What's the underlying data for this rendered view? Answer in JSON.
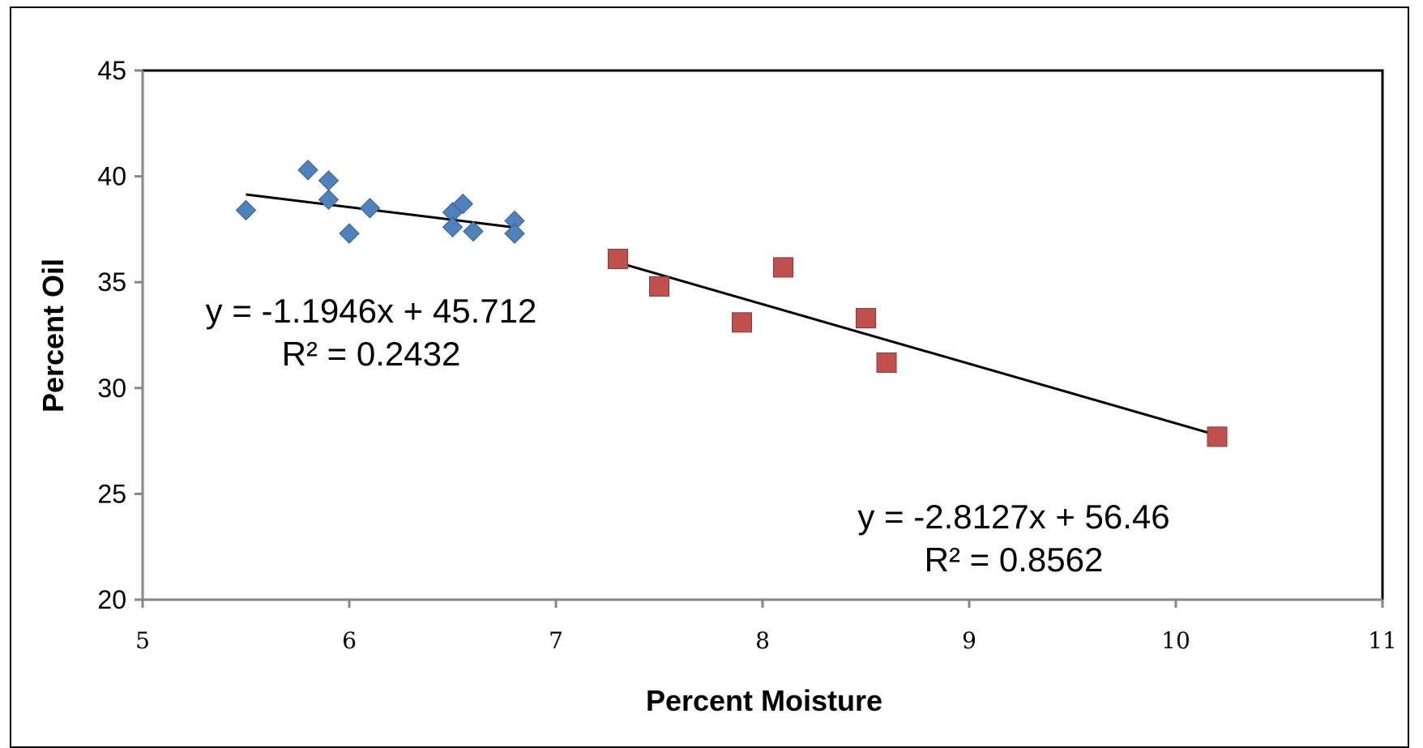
{
  "chart_data": {
    "type": "scatter",
    "title": "",
    "xlabel": "Percent Moisture",
    "ylabel": "Percent Oil",
    "xlim": [
      5,
      11
    ],
    "ylim": [
      20,
      45
    ],
    "x_ticks": [
      "5",
      "6",
      "7",
      "8",
      "9",
      "10",
      "11"
    ],
    "y_ticks": [
      "20",
      "25",
      "30",
      "35",
      "40",
      "45"
    ],
    "grid": false,
    "legend": "none",
    "series": [
      {
        "marker": "diamond",
        "color": "#4F81BD",
        "points": [
          {
            "x": 5.5,
            "y": 38.4
          },
          {
            "x": 5.8,
            "y": 40.3
          },
          {
            "x": 5.9,
            "y": 39.8
          },
          {
            "x": 5.9,
            "y": 38.9
          },
          {
            "x": 6.0,
            "y": 37.3
          },
          {
            "x": 6.1,
            "y": 38.5
          },
          {
            "x": 6.5,
            "y": 38.3
          },
          {
            "x": 6.5,
            "y": 37.6
          },
          {
            "x": 6.55,
            "y": 38.7
          },
          {
            "x": 6.6,
            "y": 37.4
          },
          {
            "x": 6.8,
            "y": 37.9
          },
          {
            "x": 6.8,
            "y": 37.3
          }
        ],
        "trendline": {
          "slope": -1.1946,
          "intercept": 45.712,
          "x_range": [
            5.5,
            6.8
          ],
          "equation": "y = -1.1946x + 45.712",
          "r_squared": "R² = 0.2432"
        }
      },
      {
        "marker": "square",
        "color": "#C0504D",
        "points": [
          {
            "x": 7.3,
            "y": 36.1
          },
          {
            "x": 7.5,
            "y": 34.8
          },
          {
            "x": 7.9,
            "y": 33.1
          },
          {
            "x": 8.1,
            "y": 35.7
          },
          {
            "x": 8.5,
            "y": 33.3
          },
          {
            "x": 8.6,
            "y": 31.2
          },
          {
            "x": 10.2,
            "y": 27.7
          }
        ],
        "trendline": {
          "slope": -2.8127,
          "intercept": 56.46,
          "x_range": [
            7.3,
            10.2
          ],
          "equation": "y = -2.8127x + 56.46",
          "r_squared": "R² = 0.8562"
        }
      }
    ]
  }
}
